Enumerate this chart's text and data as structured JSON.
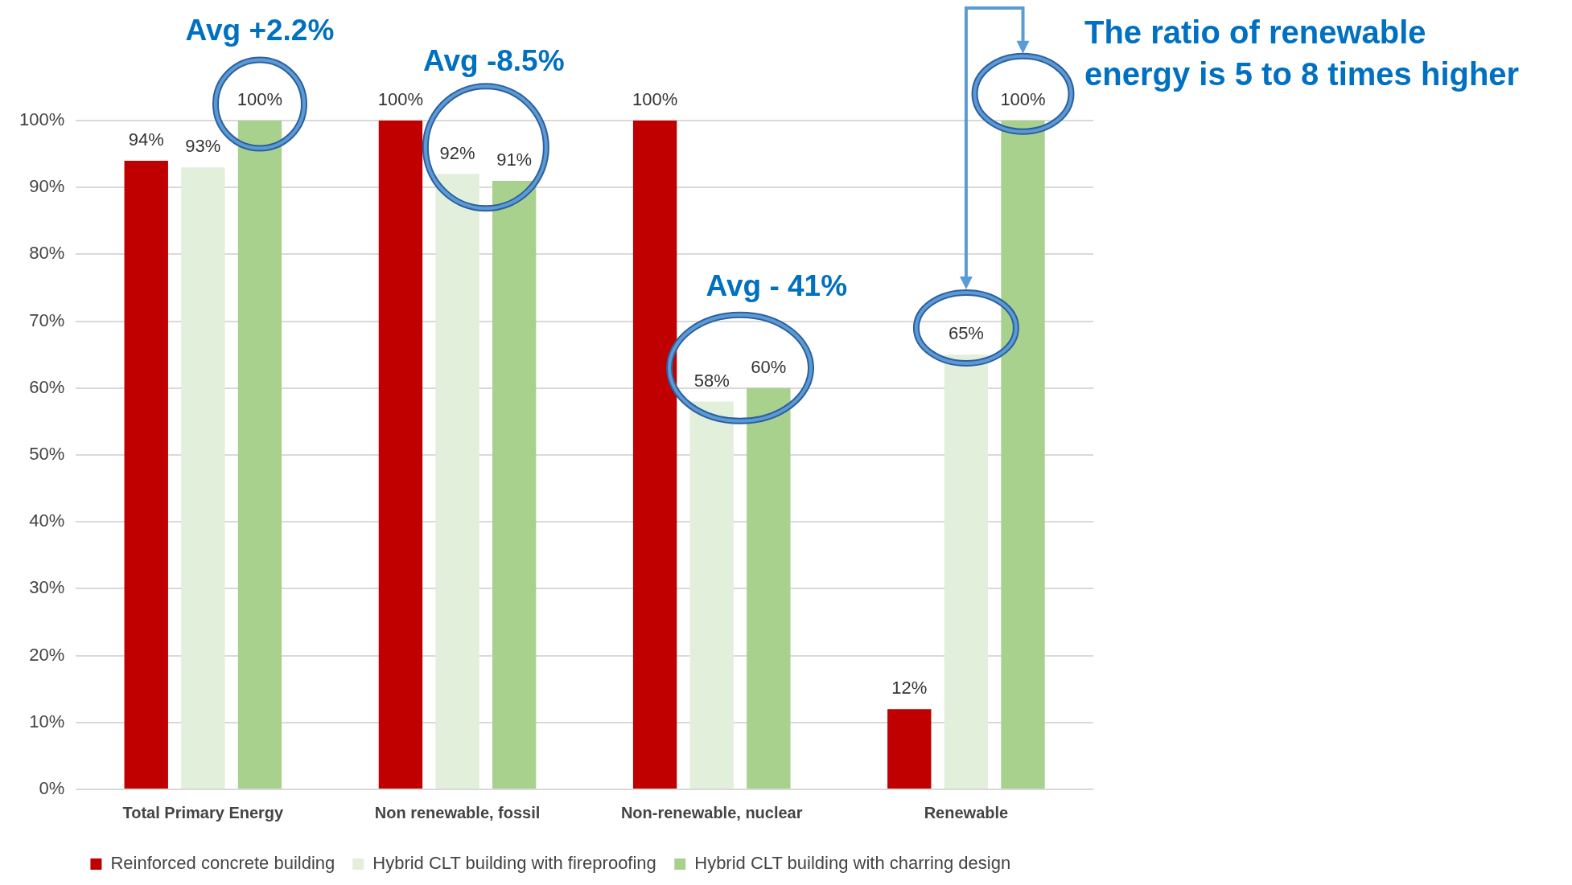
{
  "chart_data": {
    "type": "bar",
    "categories": [
      "Total Primary Energy",
      "Non renewable, fossil",
      "Non-renewable, nuclear",
      "Renewable"
    ],
    "series": [
      {
        "name": "Reinforced concrete building",
        "color": "#c00000",
        "values": [
          94,
          100,
          100,
          12
        ],
        "value_labels": [
          "94%",
          "100%",
          "100%",
          "12%"
        ]
      },
      {
        "name": "Hybrid CLT building with fireproofing",
        "color": "#e2efda",
        "values": [
          93,
          92,
          58,
          65
        ],
        "value_labels": [
          "93%",
          "92%",
          "58%",
          "65%"
        ]
      },
      {
        "name": "Hybrid CLT building with charring design",
        "color": "#a9d18e",
        "values": [
          100,
          91,
          60,
          100
        ],
        "value_labels": [
          "100%",
          "91%",
          "60%",
          "100%"
        ]
      }
    ],
    "ylim": [
      0,
      100
    ],
    "yticks": [
      {
        "value": 0,
        "label": "0%"
      },
      {
        "value": 10,
        "label": "10%"
      },
      {
        "value": 20,
        "label": "20%"
      },
      {
        "value": 30,
        "label": "30%"
      },
      {
        "value": 40,
        "label": "40%"
      },
      {
        "value": 50,
        "label": "50%"
      },
      {
        "value": 60,
        "label": "60%"
      },
      {
        "value": 70,
        "label": "70%"
      },
      {
        "value": 80,
        "label": "80%"
      },
      {
        "value": 90,
        "label": "90%"
      },
      {
        "value": 100,
        "label": "100%"
      }
    ],
    "grid": "y",
    "legend": "bottom",
    "annotations": [
      "Avg +2.2%",
      "Avg -8.5%",
      "Avg - 41%",
      "The ratio of renewable energy is 5 to 8 times higher"
    ]
  }
}
